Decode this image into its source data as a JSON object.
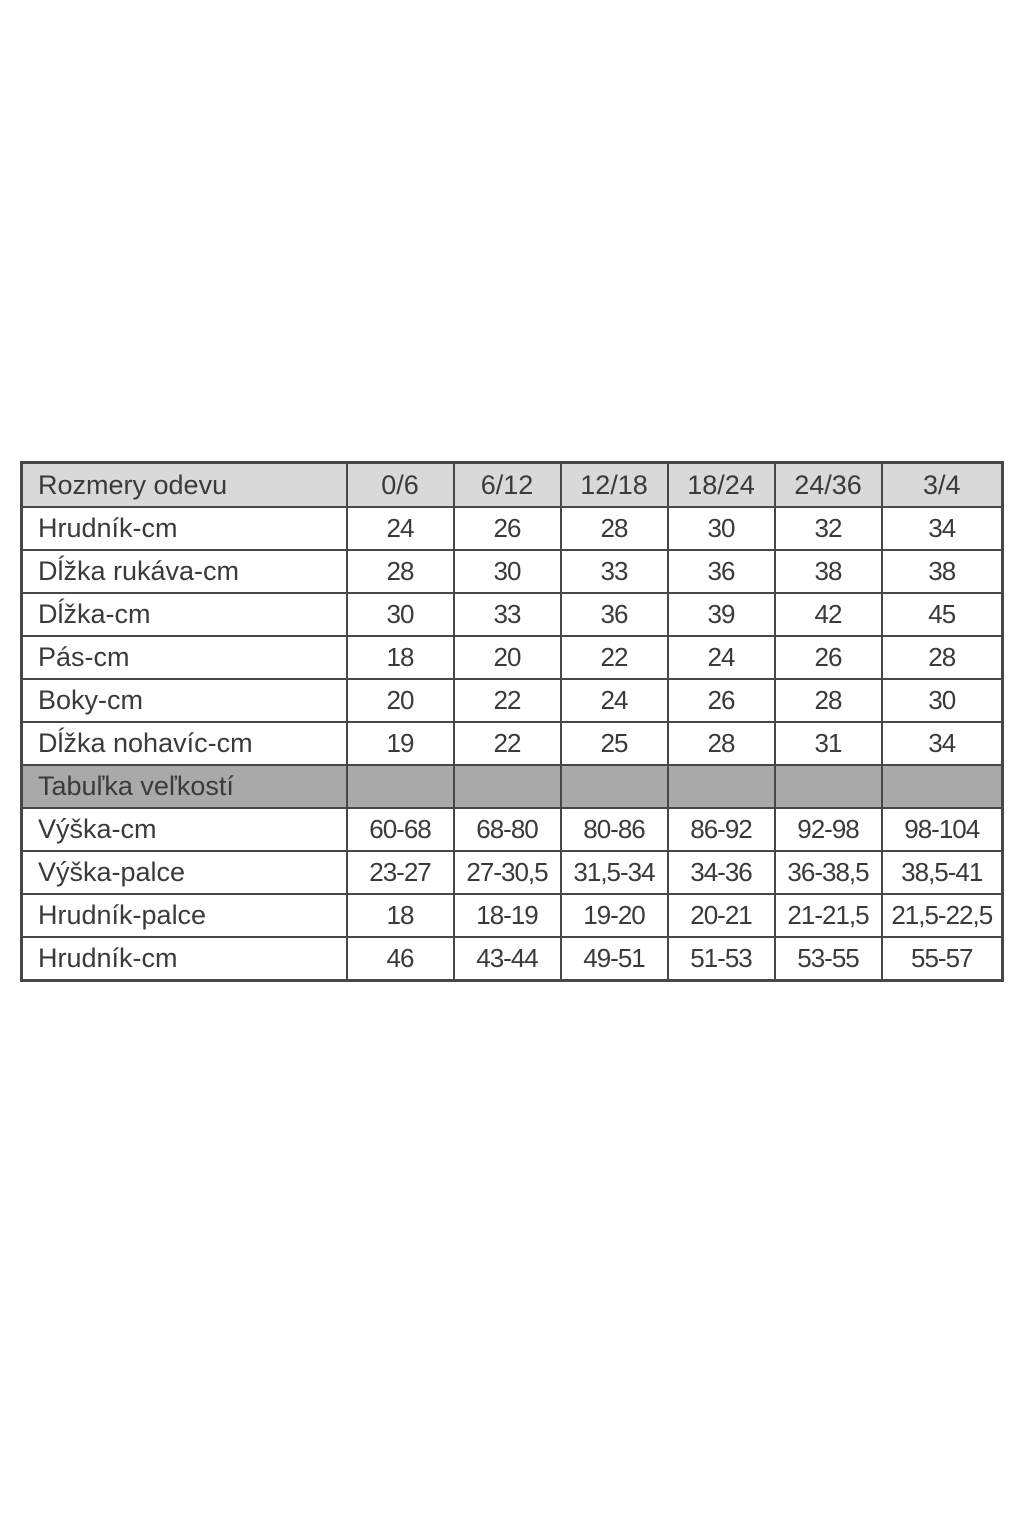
{
  "page": {
    "background": "#ffffff"
  },
  "colors": {
    "header_bg": "#d9d9d9",
    "section_bg": "#a9a9a9",
    "border": "#474747",
    "text": "#3a3a3a",
    "page_bg": "#ffffff"
  },
  "chart_data": {
    "type": "table",
    "title": "Rozmery odevu",
    "legend_position": "none",
    "columns": [
      "Rozmery odevu",
      "0/6",
      "6/12",
      "12/18",
      "18/24",
      "24/36",
      "3/4"
    ],
    "rows": [
      {
        "kind": "data",
        "label": "Hrudník-cm",
        "values": [
          "24",
          "26",
          "28",
          "30",
          "32",
          "34"
        ]
      },
      {
        "kind": "data",
        "label": "Dĺžka rukáva-cm",
        "values": [
          "28",
          "30",
          "33",
          "36",
          "38",
          "38"
        ]
      },
      {
        "kind": "data",
        "label": "Dĺžka-cm",
        "values": [
          "30",
          "33",
          "36",
          "39",
          "42",
          "45"
        ]
      },
      {
        "kind": "data",
        "label": "Pás-cm",
        "values": [
          "18",
          "20",
          "22",
          "24",
          "26",
          "28"
        ]
      },
      {
        "kind": "data",
        "label": "Boky-cm",
        "values": [
          "20",
          "22",
          "24",
          "26",
          "28",
          "30"
        ]
      },
      {
        "kind": "data",
        "label": "Dĺžka nohavíc-cm",
        "values": [
          "19",
          "22",
          "25",
          "28",
          "31",
          "34"
        ]
      },
      {
        "kind": "section",
        "label": "Tabuľka veľkostí",
        "values": [
          "",
          "",
          "",
          "",
          "",
          ""
        ]
      },
      {
        "kind": "data",
        "label": "Výška-cm",
        "values": [
          "60-68",
          "68-80",
          "80-86",
          "86-92",
          "92-98",
          "98-104"
        ]
      },
      {
        "kind": "data",
        "label": "Výška-palce",
        "values": [
          "23-27",
          "27-30,5",
          "31,5-34",
          "34-36",
          "36-38,5",
          "38,5-41"
        ]
      },
      {
        "kind": "data",
        "label": "Hrudník-palce",
        "values": [
          "18",
          "18-19",
          "19-20",
          "20-21",
          "21-21,5",
          "21,5-22,5"
        ]
      },
      {
        "kind": "data",
        "label": "Hrudník-cm",
        "values": [
          "46",
          "43-44",
          "49-51",
          "51-53",
          "53-55",
          "55-57"
        ]
      }
    ]
  }
}
